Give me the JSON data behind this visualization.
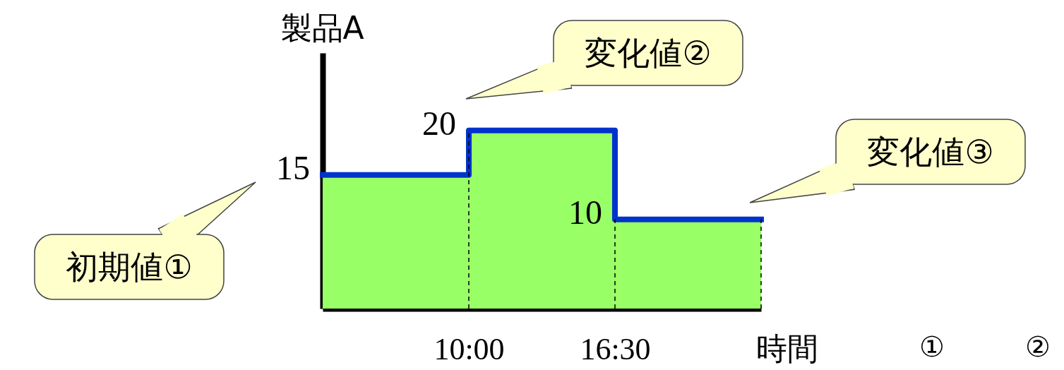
{
  "chart_data": {
    "type": "step",
    "xlabel": "時間",
    "ylabel": "製品A",
    "x": [
      3.5,
      10,
      16.5,
      23
    ],
    "xlim": [
      3.5,
      23
    ],
    "xticks": [
      {
        "value": 10,
        "label": "10:00"
      },
      {
        "value": 16.5,
        "label": "16:30"
      }
    ],
    "ylim": [
      0,
      28.7
    ],
    "tick_labels": "x",
    "series": [
      {
        "type": "area",
        "color": "#99ff66",
        "values": [
          15,
          20,
          10,
          10
        ]
      },
      {
        "color": "#0033cc",
        "values": [
          15,
          20,
          10,
          10
        ],
        "value_labels": [
          "15",
          "20",
          "10",
          null
        ]
      }
    ],
    "ref_lines": [
      {
        "axis": "x",
        "value": 10,
        "line_style": "dashed"
      },
      {
        "axis": "x",
        "value": 16.5,
        "line_style": "dashed"
      },
      {
        "axis": "x",
        "value": 23,
        "line_style": "dashed"
      }
    ],
    "annotations": [
      "初期値①",
      "変化値②",
      "変化値③",
      "①",
      "②"
    ]
  }
}
